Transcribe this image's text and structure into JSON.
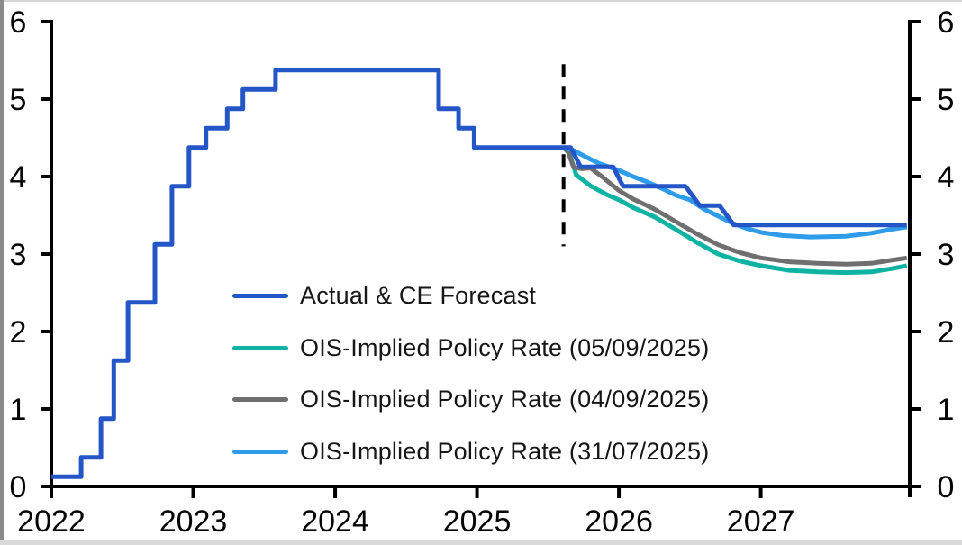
{
  "chart_data": {
    "type": "line",
    "title": "",
    "x_axis": {
      "range": [
        2022,
        2028.05
      ],
      "ticks": [
        2022,
        2023,
        2024,
        2025,
        2026,
        2027
      ],
      "tick_labels": [
        "2022",
        "2023",
        "2024",
        "2025",
        "2026",
        "2027"
      ]
    },
    "y_axis": {
      "side": "both",
      "range": [
        0,
        6
      ],
      "ticks": [
        0,
        1,
        2,
        3,
        4,
        5,
        6
      ],
      "tick_labels": [
        "0",
        "1",
        "2",
        "3",
        "4",
        "5",
        "6"
      ]
    },
    "grid": "off",
    "forecast_divider": {
      "x": 2025.61,
      "y_from": 3.1,
      "y_to": 5.45,
      "style": "dashed",
      "color": "#000000"
    },
    "legend_position": "inside-center-left",
    "series": [
      {
        "name": "Actual & CE Forecast",
        "color": "#2456c8",
        "points": [
          [
            2022.0,
            0.125
          ],
          [
            2022.21,
            0.125
          ],
          [
            2022.21,
            0.375
          ],
          [
            2022.35,
            0.375
          ],
          [
            2022.35,
            0.875
          ],
          [
            2022.44,
            0.875
          ],
          [
            2022.44,
            1.625
          ],
          [
            2022.54,
            1.625
          ],
          [
            2022.54,
            2.375
          ],
          [
            2022.73,
            2.375
          ],
          [
            2022.73,
            3.125
          ],
          [
            2022.85,
            3.125
          ],
          [
            2022.85,
            3.875
          ],
          [
            2022.97,
            3.875
          ],
          [
            2022.97,
            4.375
          ],
          [
            2023.09,
            4.375
          ],
          [
            2023.09,
            4.625
          ],
          [
            2023.24,
            4.625
          ],
          [
            2023.24,
            4.875
          ],
          [
            2023.35,
            4.875
          ],
          [
            2023.35,
            5.125
          ],
          [
            2023.58,
            5.125
          ],
          [
            2023.58,
            5.375
          ],
          [
            2024.73,
            5.375
          ],
          [
            2024.73,
            4.875
          ],
          [
            2024.87,
            4.875
          ],
          [
            2024.87,
            4.625
          ],
          [
            2024.98,
            4.625
          ],
          [
            2024.98,
            4.375
          ],
          [
            2025.66,
            4.375
          ],
          [
            2025.73,
            4.125
          ],
          [
            2025.96,
            4.125
          ],
          [
            2026.03,
            3.875
          ],
          [
            2026.47,
            3.875
          ],
          [
            2026.57,
            3.625
          ],
          [
            2026.71,
            3.625
          ],
          [
            2026.81,
            3.375
          ],
          [
            2028.03,
            3.375
          ]
        ]
      },
      {
        "name": "OIS-Implied Policy Rate (05/09/2025)",
        "color": "#0fb3a3",
        "points": [
          [
            2025.61,
            4.375
          ],
          [
            2025.65,
            4.3
          ],
          [
            2025.7,
            4.02
          ],
          [
            2025.8,
            3.88
          ],
          [
            2025.92,
            3.76
          ],
          [
            2026.0,
            3.7
          ],
          [
            2026.1,
            3.6
          ],
          [
            2026.25,
            3.48
          ],
          [
            2026.4,
            3.32
          ],
          [
            2026.55,
            3.15
          ],
          [
            2026.7,
            3.0
          ],
          [
            2026.85,
            2.91
          ],
          [
            2027.0,
            2.85
          ],
          [
            2027.2,
            2.79
          ],
          [
            2027.4,
            2.77
          ],
          [
            2027.6,
            2.76
          ],
          [
            2027.78,
            2.77
          ],
          [
            2027.92,
            2.81
          ],
          [
            2028.03,
            2.85
          ]
        ]
      },
      {
        "name": "OIS-Implied Policy Rate (04/09/2025)",
        "color": "#6f6f6f",
        "points": [
          [
            2025.61,
            4.375
          ],
          [
            2025.64,
            4.33
          ],
          [
            2025.68,
            4.12
          ],
          [
            2025.74,
            4.1
          ],
          [
            2025.8,
            4.11
          ],
          [
            2025.88,
            4.0
          ],
          [
            2025.96,
            3.88
          ],
          [
            2026.0,
            3.82
          ],
          [
            2026.1,
            3.71
          ],
          [
            2026.25,
            3.58
          ],
          [
            2026.4,
            3.42
          ],
          [
            2026.55,
            3.26
          ],
          [
            2026.7,
            3.12
          ],
          [
            2026.85,
            3.02
          ],
          [
            2027.0,
            2.95
          ],
          [
            2027.2,
            2.9
          ],
          [
            2027.4,
            2.88
          ],
          [
            2027.6,
            2.87
          ],
          [
            2027.78,
            2.88
          ],
          [
            2027.92,
            2.92
          ],
          [
            2028.03,
            2.95
          ]
        ]
      },
      {
        "name": "OIS-Implied Policy Rate (31/07/2025)",
        "color": "#2e9ce9",
        "points": [
          [
            2025.61,
            4.375
          ],
          [
            2025.68,
            4.34
          ],
          [
            2025.76,
            4.26
          ],
          [
            2025.86,
            4.17
          ],
          [
            2026.0,
            4.08
          ],
          [
            2026.1,
            4.0
          ],
          [
            2026.2,
            3.93
          ],
          [
            2026.3,
            3.85
          ],
          [
            2026.4,
            3.76
          ],
          [
            2026.5,
            3.7
          ],
          [
            2026.6,
            3.58
          ],
          [
            2026.7,
            3.49
          ],
          [
            2026.8,
            3.4
          ],
          [
            2026.9,
            3.33
          ],
          [
            2027.0,
            3.28
          ],
          [
            2027.15,
            3.24
          ],
          [
            2027.35,
            3.22
          ],
          [
            2027.6,
            3.23
          ],
          [
            2027.78,
            3.27
          ],
          [
            2027.92,
            3.32
          ],
          [
            2028.03,
            3.35
          ]
        ]
      }
    ],
    "axis_color": "#000000",
    "line_width": 5
  }
}
